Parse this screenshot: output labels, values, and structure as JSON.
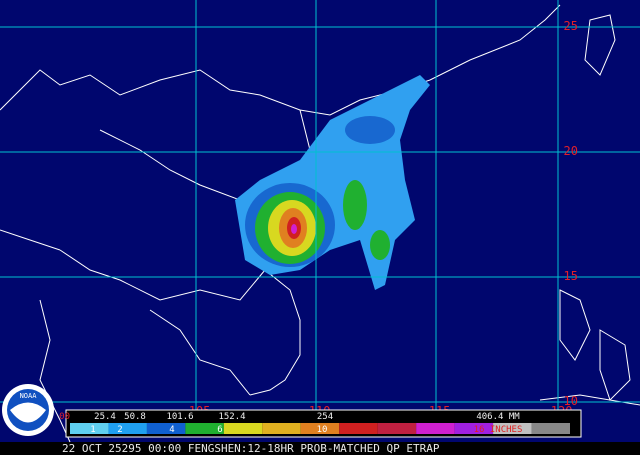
{
  "map": {
    "lat_labels": [
      "25",
      "20",
      "15",
      "10"
    ],
    "lon_labels": [
      "-105",
      "-110",
      "-115",
      "-120"
    ],
    "logo": "NOAA",
    "legend": {
      "mm": [
        "00",
        "25.4",
        "50.8",
        "101.6",
        "152.4",
        "254",
        "406.4 MM"
      ],
      "inches": [
        "1",
        "2",
        "4",
        "6",
        "10",
        "16 INCHES"
      ]
    },
    "footer": "22 OCT 25295 00:00 FENGSHEN:12-18HR PROB-MATCHED QP ETRAP"
  }
}
